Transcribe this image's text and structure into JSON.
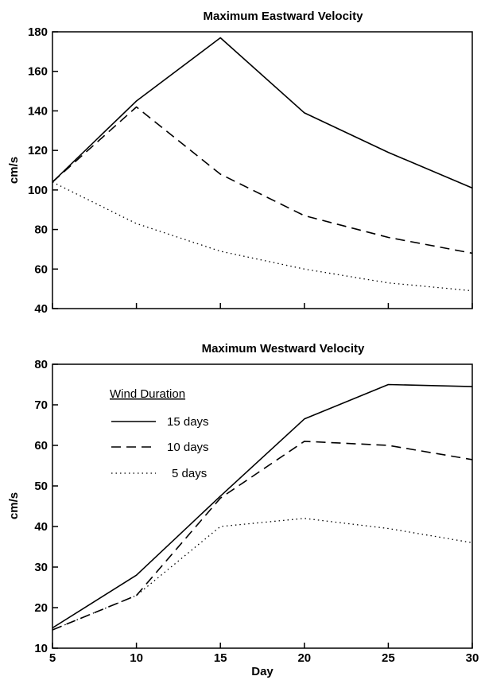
{
  "chart_data": [
    {
      "type": "line",
      "title": "Maximum Eastward Velocity",
      "xlabel": "",
      "ylabel": "cm/s",
      "xlim": [
        5,
        30
      ],
      "ylim": [
        40,
        180
      ],
      "xticks": [
        5,
        10,
        15,
        20,
        25,
        30
      ],
      "yticks": [
        40,
        60,
        80,
        100,
        120,
        140,
        160,
        180
      ],
      "grid": false,
      "series": [
        {
          "style": "solid",
          "x": [
            5,
            10,
            15,
            20,
            25,
            30
          ],
          "y": [
            104,
            145,
            177,
            139,
            119,
            101
          ]
        },
        {
          "style": "dashed",
          "x": [
            5,
            10,
            15,
            20,
            25,
            30
          ],
          "y": [
            104,
            142,
            108,
            87,
            76,
            68
          ]
        },
        {
          "style": "dotted",
          "x": [
            5,
            10,
            15,
            20,
            25,
            30
          ],
          "y": [
            104,
            83,
            69,
            60,
            53,
            49
          ]
        }
      ]
    },
    {
      "type": "line",
      "title": "Maximum Westward Velocity",
      "xlabel": "Day",
      "ylabel": "cm/s",
      "xlim": [
        5,
        30
      ],
      "ylim": [
        10,
        80
      ],
      "xticks": [
        5,
        10,
        15,
        20,
        25,
        30
      ],
      "yticks": [
        10,
        20,
        30,
        40,
        50,
        60,
        70,
        80
      ],
      "grid": false,
      "legend": {
        "title": "Wind Duration",
        "placement": "top-left",
        "entries": [
          {
            "label": "15 days",
            "style": "solid"
          },
          {
            "label": "10 days",
            "style": "dashed"
          },
          {
            "label": "5 days",
            "style": "dotted"
          }
        ]
      },
      "series": [
        {
          "name": "15 days",
          "style": "solid",
          "x": [
            5,
            10,
            15,
            20,
            25,
            30
          ],
          "y": [
            15,
            28,
            47.5,
            66.5,
            75,
            74.5
          ]
        },
        {
          "name": "10 days",
          "style": "dashed",
          "x": [
            5,
            10,
            15,
            20,
            25,
            30
          ],
          "y": [
            14.5,
            23,
            47,
            61,
            60,
            56.5
          ]
        },
        {
          "name": "5 days",
          "style": "dotted",
          "x": [
            5,
            10,
            15,
            20,
            25,
            30
          ],
          "y": [
            14.5,
            23,
            40,
            42,
            39.5,
            36
          ]
        }
      ]
    }
  ]
}
